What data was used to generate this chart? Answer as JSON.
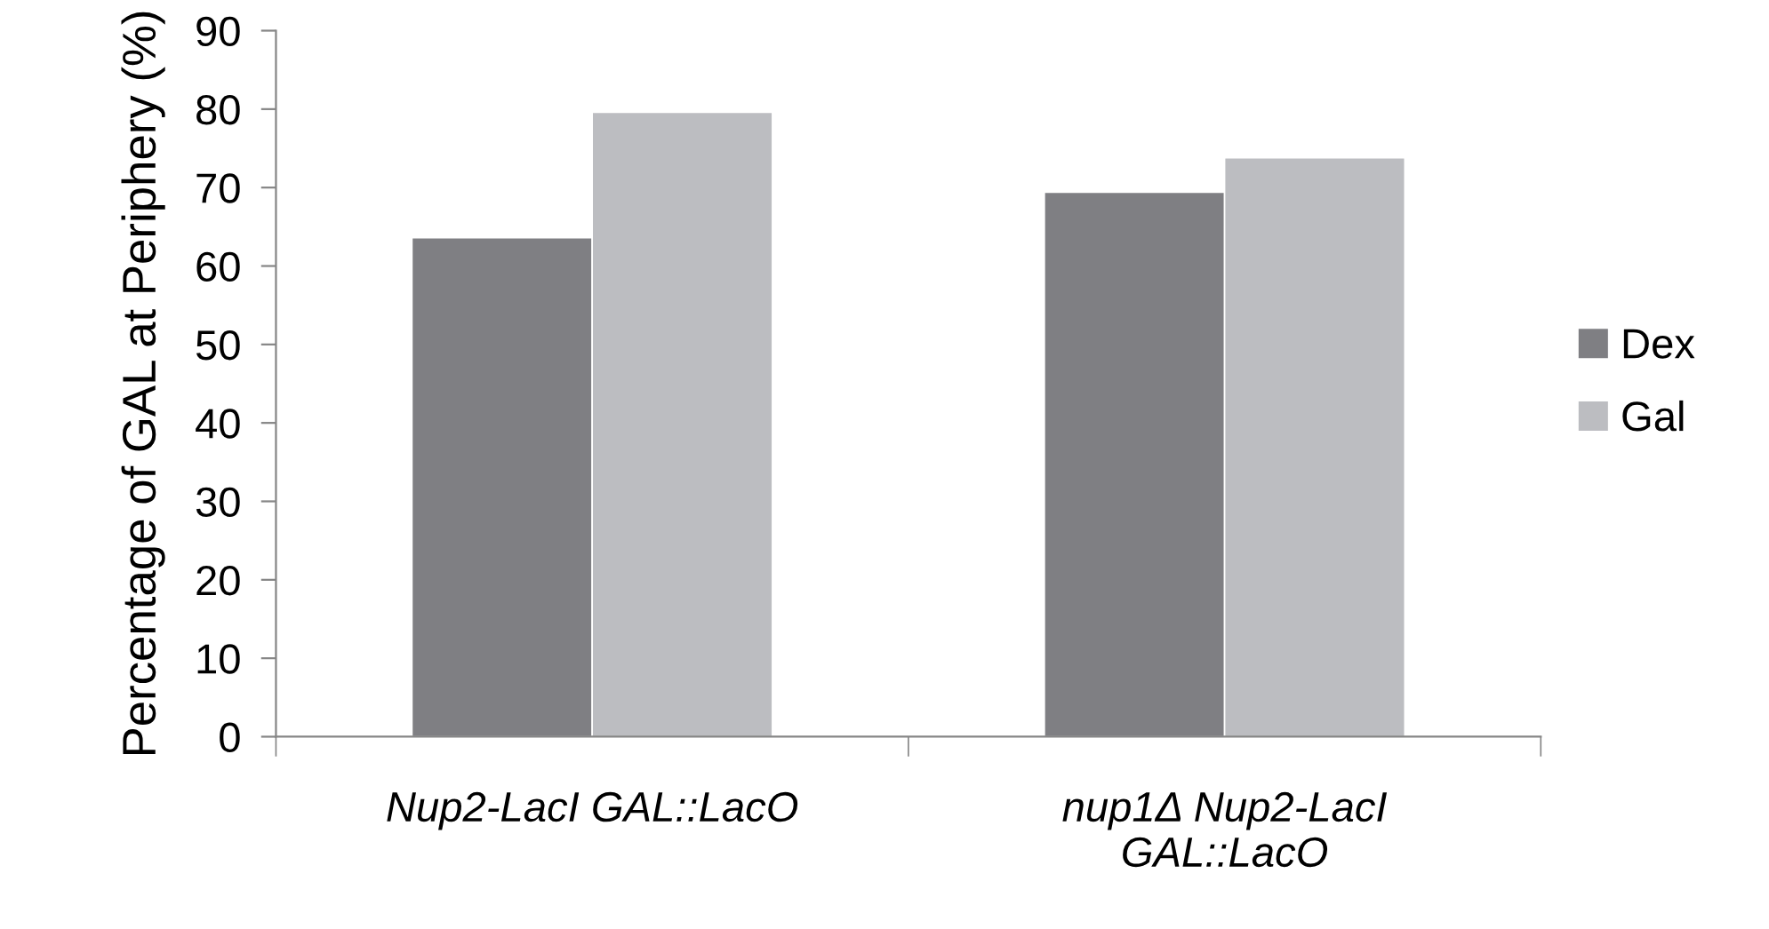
{
  "chart_data": {
    "type": "bar",
    "ylabel": "Percentage of GAL at Periphery (%)",
    "categories": [
      "Nup2-LacI GAL::LacO",
      "nup1Δ Nup2-LacI\nGAL::LacO"
    ],
    "series": [
      {
        "name": "Dex",
        "color": "#7f7f83",
        "values": [
          63.6,
          69.4
        ]
      },
      {
        "name": "Gal",
        "color": "#bcbdc1",
        "values": [
          79.6,
          73.8
        ]
      }
    ],
    "ylim": [
      0,
      90
    ],
    "yticks": [
      0,
      10,
      20,
      30,
      40,
      50,
      60,
      70,
      80,
      90
    ],
    "grid": false,
    "legend": "right"
  }
}
